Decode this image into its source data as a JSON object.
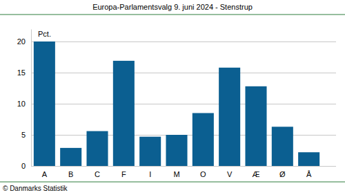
{
  "chart_data": {
    "type": "bar",
    "title": "Europa-Parlamentsvalg 9. juni 2024 - Stenstrup",
    "y_label": "Pct.",
    "footer": "© Danmarks Statistik",
    "categories": [
      "A",
      "B",
      "C",
      "F",
      "I",
      "M",
      "O",
      "V",
      "Æ",
      "Ø",
      "Å"
    ],
    "values": [
      20.0,
      2.9,
      5.6,
      16.9,
      4.7,
      5.0,
      8.5,
      15.8,
      12.8,
      6.3,
      2.2
    ],
    "color": "#0b5f91",
    "ylim": [
      0,
      22
    ],
    "yticks": [
      0,
      5,
      10,
      15,
      20
    ],
    "grid": true
  }
}
